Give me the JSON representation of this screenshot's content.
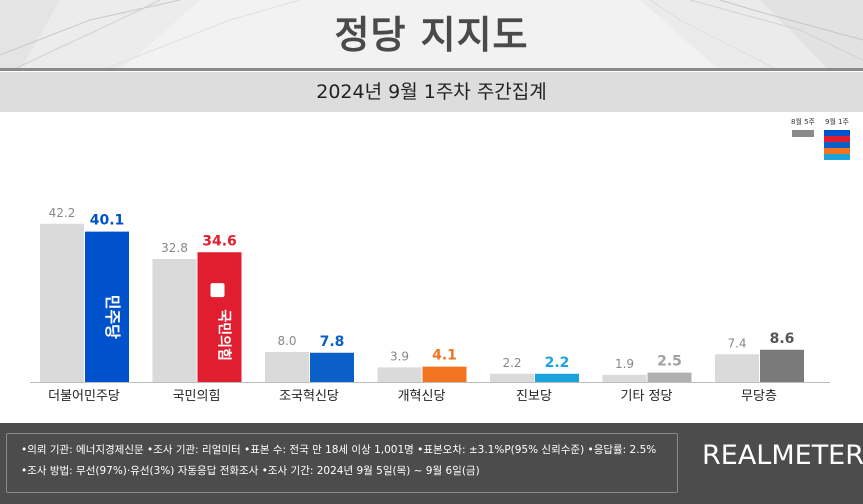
{
  "header": {
    "title": "정당 지지도",
    "subtitle": "2024년 9월 1주차 주간집계"
  },
  "legend": {
    "prev_label": "8월 5주",
    "curr_label": "9월 1주"
  },
  "colors": {
    "prev_bar": "#dadada",
    "dem": "#0052cc",
    "ppp": "#e01e2f",
    "rebuild": "#0a5fc9",
    "reform": "#f27421",
    "progressive": "#1ba3dd",
    "other": "#b0b0b0",
    "none": "#7a7a7a",
    "footer_bg": "#4c4c4c"
  },
  "logos": {
    "dem": "민주당",
    "ppp": "국민의힘"
  },
  "chart_data": {
    "type": "bar",
    "title": "정당 지지도",
    "subtitle": "2024년 9월 1주차 주간집계",
    "categories": [
      "더불어민주당",
      "국민의힘",
      "조국혁신당",
      "개혁신당",
      "진보당",
      "기타 정당",
      "무당층"
    ],
    "series": [
      {
        "name": "8월 5주",
        "values": [
          42.2,
          32.8,
          8.0,
          3.9,
          2.2,
          1.9,
          7.4
        ],
        "labels": [
          "42.2",
          "32.8",
          "8.0",
          "3.9",
          "2.2",
          "1.9",
          "7.4"
        ]
      },
      {
        "name": "9월 1주",
        "values": [
          40.1,
          34.6,
          7.8,
          4.1,
          2.2,
          2.5,
          8.6
        ],
        "labels": [
          "40.1",
          "34.6",
          "7.8",
          "4.1",
          "2.2",
          "2.5",
          "8.6"
        ],
        "label_colors": [
          "#0052cc",
          "#e01e2f",
          "#0a5fc9",
          "#f27421",
          "#1ba3dd",
          "#a0a0a0",
          "#555555"
        ]
      }
    ],
    "ylim": [
      0,
      45
    ],
    "grid": false,
    "legend_position": "top-right"
  },
  "footer": {
    "line1": "•의뢰 기관: 에너지경제신문  •조사 기관: 리얼미터  •표본 수: 전국 만 18세 이상 1,001명  •표본오차: ±3.1%P(95% 신뢰수준)  •응답률: 2.5%",
    "line2": "•조사 방법: 무선(97%)·유선(3%) 자동응답 전화조사  •조사 기간: 2024년 9월 5일(목) ~ 9월 6일(금)",
    "brand": "REALMETER"
  }
}
